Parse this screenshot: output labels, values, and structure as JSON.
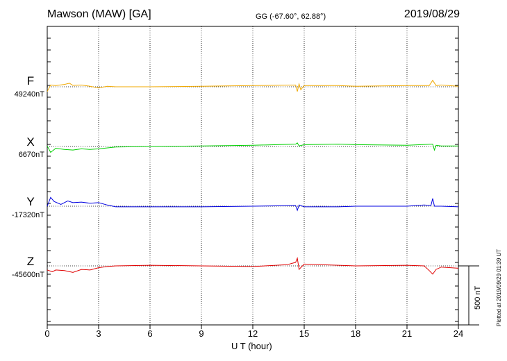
{
  "header": {
    "station": "Mawson (MAW)  [GA]",
    "coords": "GG (-67.60°,  62.88°)",
    "date": "2019/08/29"
  },
  "footer": {
    "plotted_at": "Plotted at 2019/09/29 01:39 UT",
    "scale_label": "500 nT"
  },
  "chart_data": {
    "type": "line",
    "title": "Mawson (MAW)  [GA]",
    "xlabel": "U T (hour)",
    "xlim": [
      0,
      24
    ],
    "xticks": [
      0,
      3,
      6,
      9,
      12,
      15,
      18,
      21,
      24
    ],
    "scale_nT": 500,
    "grid": true,
    "series": [
      {
        "name": "F",
        "baseline_label": "49240nT",
        "baseline_nT": 49240,
        "color": "#f0a800",
        "x": [
          0,
          0.2,
          0.5,
          1,
          1.3,
          1.5,
          2,
          2.5,
          3,
          3.5,
          4,
          6,
          9,
          12,
          14.5,
          14.6,
          14.7,
          14.8,
          15,
          17,
          18,
          21,
          22.3,
          22.5,
          22.7,
          23,
          24
        ],
        "y": [
          -40,
          15,
          10,
          20,
          30,
          12,
          15,
          5,
          -10,
          5,
          0,
          0,
          5,
          10,
          15,
          -40,
          25,
          -25,
          10,
          10,
          5,
          10,
          10,
          55,
          10,
          15,
          5
        ]
      },
      {
        "name": "X",
        "baseline_label": "6670nT",
        "baseline_nT": 6670,
        "color": "#00d000",
        "x": [
          0,
          0.2,
          0.5,
          1,
          1.5,
          2,
          2.5,
          3,
          4,
          6,
          9,
          12,
          14.5,
          14.6,
          14.7,
          15,
          17,
          18,
          21,
          22.5,
          22.6,
          22.7,
          23,
          24
        ],
        "y": [
          5,
          -50,
          -15,
          -25,
          -30,
          -20,
          -25,
          -20,
          -5,
          0,
          5,
          10,
          20,
          30,
          5,
          15,
          20,
          15,
          10,
          20,
          -30,
          10,
          5,
          5
        ]
      },
      {
        "name": "Y",
        "baseline_label": "-17320nT",
        "baseline_nT": -17320,
        "color": "#0000e0",
        "x": [
          0,
          0.2,
          0.4,
          0.8,
          1.2,
          1.5,
          2,
          2.5,
          3,
          3.5,
          4,
          6,
          9,
          12,
          14.5,
          14.6,
          14.7,
          15,
          17,
          18,
          21,
          22,
          22.4,
          22.5,
          22.6,
          23,
          24
        ],
        "y": [
          0,
          75,
          40,
          15,
          45,
          30,
          35,
          25,
          30,
          10,
          -5,
          -5,
          -5,
          0,
          5,
          -35,
          10,
          -5,
          -5,
          0,
          0,
          10,
          5,
          65,
          0,
          0,
          -5
        ]
      },
      {
        "name": "Z",
        "baseline_label": "-45600nT",
        "baseline_nT": -45600,
        "color": "#e00000",
        "x": [
          0,
          0.3,
          0.5,
          1,
          1.5,
          2,
          2.5,
          3,
          3.5,
          4,
          6,
          9,
          12,
          14,
          14.5,
          14.6,
          14.7,
          15,
          17,
          18,
          21,
          22,
          22.3,
          22.5,
          22.7,
          23,
          24
        ],
        "y": [
          -35,
          -50,
          -35,
          -40,
          -55,
          -30,
          -35,
          -15,
          -5,
          0,
          5,
          0,
          -5,
          10,
          30,
          65,
          -30,
          15,
          5,
          0,
          5,
          0,
          -40,
          -70,
          -30,
          -10,
          -20
        ]
      }
    ]
  }
}
